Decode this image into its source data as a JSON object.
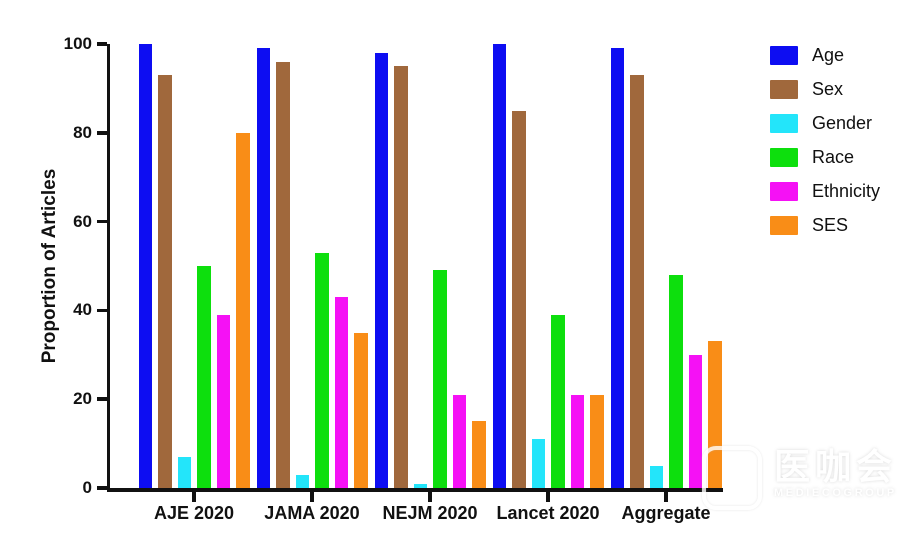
{
  "chart_data": {
    "type": "bar",
    "title": "",
    "ylabel": "Proportion of Articles",
    "xlabel": "",
    "ylim": [
      0,
      100
    ],
    "yticks": [
      0,
      20,
      40,
      60,
      80,
      100
    ],
    "grid": false,
    "legend_position": "right",
    "categories": [
      "AJE 2020",
      "JAMA 2020",
      "NEJM 2020",
      "Lancet 2020",
      "Aggregate"
    ],
    "series": [
      {
        "name": "Age",
        "color": "#0D0DF2",
        "values": [
          100,
          99,
          98,
          100,
          99
        ]
      },
      {
        "name": "Sex",
        "color": "#A0683C",
        "values": [
          93,
          96,
          95,
          85,
          93
        ]
      },
      {
        "name": "Gender",
        "color": "#23E5FA",
        "values": [
          7,
          3,
          1,
          11,
          5
        ]
      },
      {
        "name": "Race",
        "color": "#0DDF0D",
        "values": [
          50,
          53,
          49,
          39,
          48
        ]
      },
      {
        "name": "Ethnicity",
        "color": "#F511F5",
        "values": [
          39,
          43,
          21,
          21,
          30
        ]
      },
      {
        "name": "SES",
        "color": "#F98D17",
        "values": [
          80,
          35,
          15,
          21,
          33
        ]
      }
    ]
  },
  "watermark": {
    "title": "医咖会",
    "subtitle": "MEDIECOGROUP"
  }
}
